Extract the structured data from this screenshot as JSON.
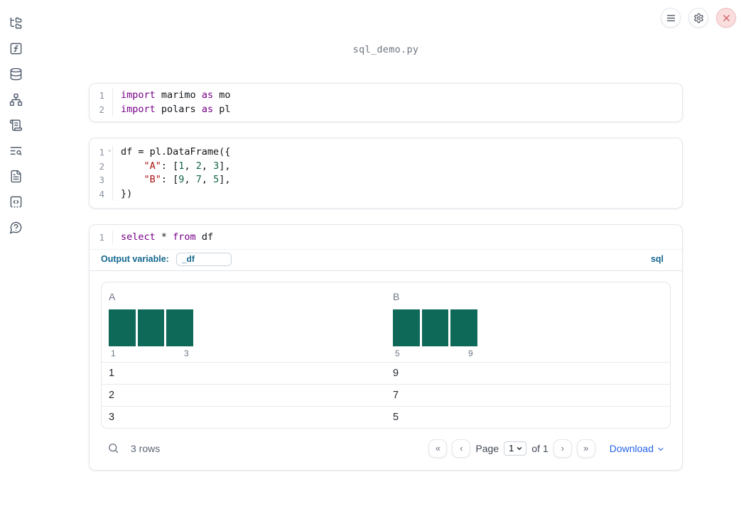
{
  "filename": "sql_demo.py",
  "colors": {
    "accent_blue": "#14678f",
    "link_blue": "#2563eb",
    "histogram_bar": "#0e6958",
    "keyword": "#770088",
    "string": "#aa1111",
    "number": "#116644",
    "close_red": "#cd5f63"
  },
  "toolbar": {
    "menu_icon": "menu-icon",
    "settings_icon": "gear-icon",
    "close_icon": "close-icon"
  },
  "sidebar": {
    "items": [
      {
        "name": "files",
        "icon": "folder-tree-icon"
      },
      {
        "name": "variables",
        "icon": "function-square-icon"
      },
      {
        "name": "datasources",
        "icon": "database-icon"
      },
      {
        "name": "dependencies",
        "icon": "network-icon"
      },
      {
        "name": "scratchpad",
        "icon": "scroll-text-icon"
      },
      {
        "name": "logs",
        "icon": "text-search-icon"
      },
      {
        "name": "documentation",
        "icon": "file-text-icon"
      },
      {
        "name": "snippets",
        "icon": "code-square-icon"
      },
      {
        "name": "help",
        "icon": "help-bubble-icon"
      }
    ]
  },
  "icons": {
    "fold": "⌄"
  },
  "cells": [
    {
      "name": "imports-cell",
      "lines": [
        {
          "tokens": [
            [
              "kw",
              "import"
            ],
            [
              "pl",
              " marimo "
            ],
            [
              "kw",
              "as"
            ],
            [
              "pl",
              " mo"
            ]
          ]
        },
        {
          "tokens": [
            [
              "kw",
              "import"
            ],
            [
              "pl",
              " polars "
            ],
            [
              "kw",
              "as"
            ],
            [
              "pl",
              " pl"
            ]
          ]
        }
      ]
    },
    {
      "name": "dataframe-cell",
      "fold_marker_line": 0,
      "lines": [
        {
          "tokens": [
            [
              "pl",
              "df = pl.DataFrame({"
            ]
          ]
        },
        {
          "tokens": [
            [
              "pl",
              "    "
            ],
            [
              "str",
              "\"A\""
            ],
            [
              "pl",
              ": ["
            ],
            [
              "num",
              "1"
            ],
            [
              "pl",
              ", "
            ],
            [
              "num",
              "2"
            ],
            [
              "pl",
              ", "
            ],
            [
              "num",
              "3"
            ],
            [
              "pl",
              "],"
            ]
          ]
        },
        {
          "tokens": [
            [
              "pl",
              "    "
            ],
            [
              "str",
              "\"B\""
            ],
            [
              "pl",
              ": ["
            ],
            [
              "num",
              "9"
            ],
            [
              "pl",
              ", "
            ],
            [
              "num",
              "7"
            ],
            [
              "pl",
              ", "
            ],
            [
              "num",
              "5"
            ],
            [
              "pl",
              "],"
            ]
          ]
        },
        {
          "tokens": [
            [
              "pl",
              "})"
            ]
          ]
        }
      ]
    },
    {
      "name": "sql-cell",
      "lines": [
        {
          "tokens": [
            [
              "kw",
              "select"
            ],
            [
              "pl",
              " * "
            ],
            [
              "kw",
              "from"
            ],
            [
              "pl",
              " df"
            ]
          ]
        }
      ],
      "output_variable_label": "Output variable:",
      "output_variable_value": "_df",
      "language_badge": "sql"
    }
  ],
  "table": {
    "columns": [
      {
        "header": "A",
        "hist": {
          "bars": [
            1,
            1,
            1
          ],
          "min_label": "1",
          "max_label": "3"
        }
      },
      {
        "header": "B",
        "hist": {
          "bars": [
            1,
            1,
            1
          ],
          "min_label": "5",
          "max_label": "9"
        }
      }
    ],
    "rows": [
      [
        "1",
        "9"
      ],
      [
        "2",
        "7"
      ],
      [
        "3",
        "5"
      ]
    ],
    "footer": {
      "row_count": "3 rows",
      "page_label": "Page",
      "page_value": "1",
      "of_label": "of 1",
      "download_label": "Download",
      "first_icon": "«",
      "prev_icon": "‹",
      "next_icon": "›",
      "last_icon": "»"
    }
  }
}
